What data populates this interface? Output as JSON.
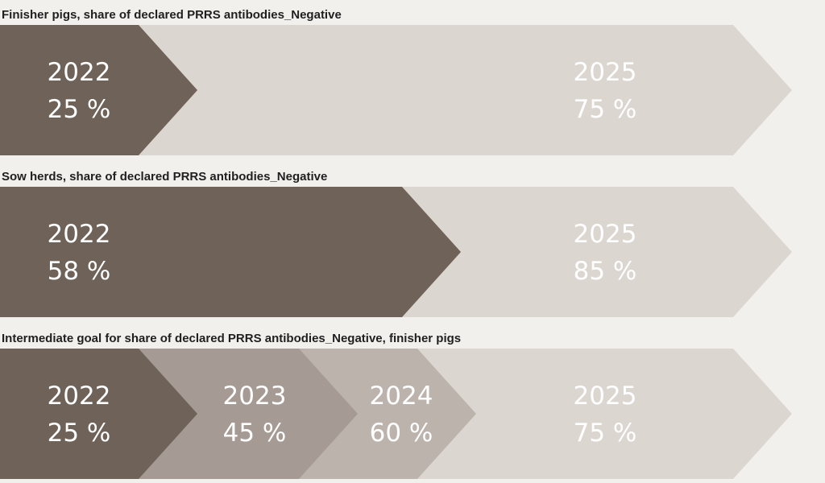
{
  "colors": {
    "dark": "#6e6259",
    "mid1": "#a59b94",
    "mid2": "#bcb3ad",
    "light": "#dcd6d0",
    "background": "#f2f0ed"
  },
  "sections": [
    {
      "title": "Finisher pigs, share of declared PRRS antibodies_Negative",
      "stages": [
        {
          "year": "2022",
          "value": "25 %",
          "share": 25
        },
        {
          "year": "2025",
          "value": "75 %",
          "share": 75
        }
      ]
    },
    {
      "title": "Sow herds, share of declared PRRS antibodies_Negative",
      "stages": [
        {
          "year": "2022",
          "value": "58 %",
          "share": 58
        },
        {
          "year": "2025",
          "value": "85 %",
          "share": 85
        }
      ]
    },
    {
      "title": "Intermediate goal for share of declared PRRS antibodies_Negative, finisher pigs",
      "stages": [
        {
          "year": "2022",
          "value": "25 %",
          "share": 25
        },
        {
          "year": "2023",
          "value": "45 %",
          "share": 45
        },
        {
          "year": "2024",
          "value": "60 %",
          "share": 60
        },
        {
          "year": "2025",
          "value": "75 %",
          "share": 75
        }
      ]
    }
  ]
}
